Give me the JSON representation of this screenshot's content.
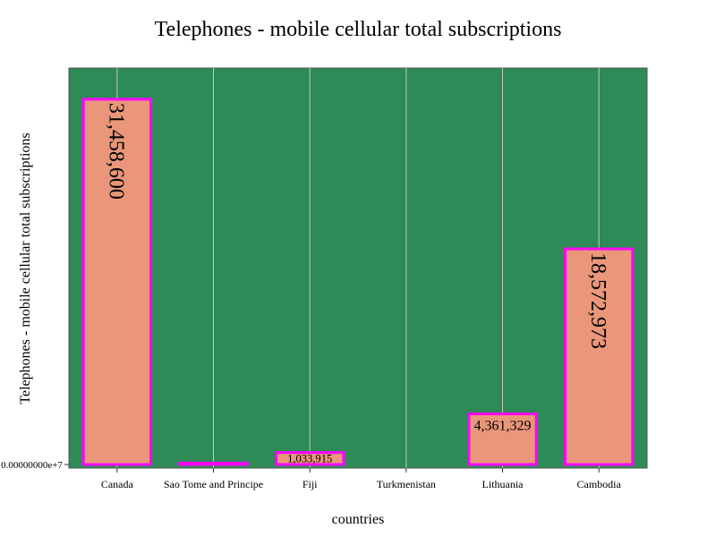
{
  "chart_data": {
    "type": "bar",
    "title": "Telephones - mobile cellular total subscriptions",
    "xlabel": "countries",
    "ylabel": "Telephones - mobile cellular total subscriptions",
    "categories": [
      "Canada",
      "Sao Tome and Principe",
      "Fiji",
      "Turkmenistan",
      "Lithuania",
      "Cambodia"
    ],
    "values": [
      31458600,
      122000,
      1033915,
      0,
      4361329,
      18572973
    ],
    "data_labels": [
      "31,458,600",
      "",
      "1,033,915",
      "",
      "4,361,329",
      "18,572,973"
    ],
    "ylim": [
      0,
      33300000
    ],
    "y_tick_label": "0.00000000e+7",
    "grid": "vertical",
    "colors": {
      "plot_background": "#2e8a57",
      "bar_fill": "#e9967a",
      "bar_stroke": "#ff00ff",
      "gridline": "#c8c8c8",
      "axis": "#333333",
      "text": "#000000"
    }
  }
}
